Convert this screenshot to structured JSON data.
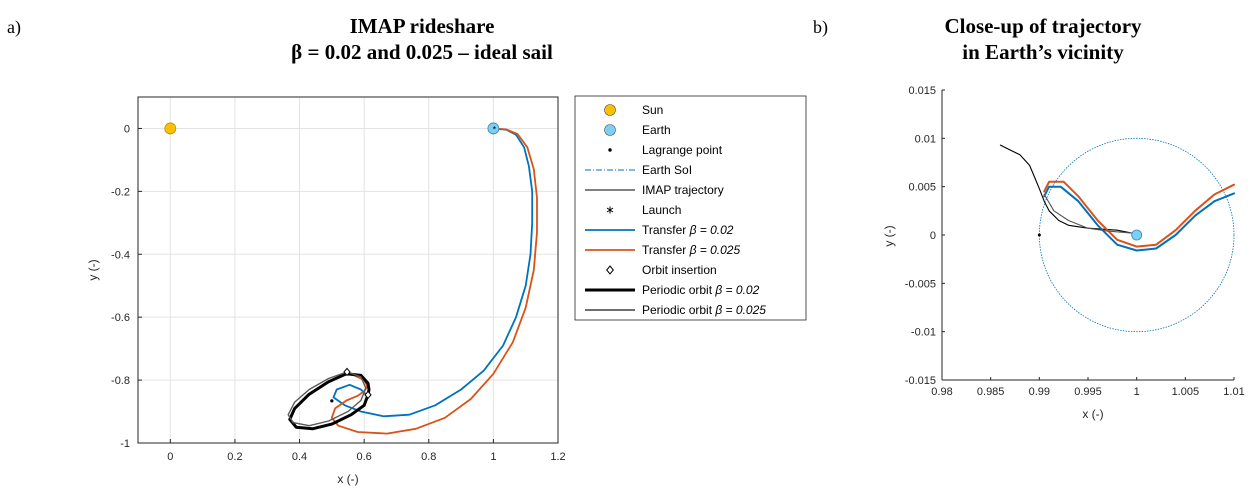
{
  "panels": {
    "a": {
      "label": "a)",
      "title_line1": "IMAP rideshare",
      "title_line2": "β = 0.02 and 0.025 – ideal sail"
    },
    "b": {
      "label": "b)",
      "title_line1": "Close-up of trajectory",
      "title_line2": "in Earth’s vicinity"
    }
  },
  "chart_data": [
    {
      "type": "line",
      "title": "IMAP rideshare β = 0.02 and 0.025 – ideal sail",
      "xlabel": "x (-)",
      "ylabel": "y (-)",
      "xlim": [
        -0.1,
        1.2
      ],
      "ylim": [
        -1.0,
        0.1
      ],
      "xticks": [
        "0",
        "0.2",
        "0.4",
        "0.6",
        "0.8",
        "1",
        "1.2"
      ],
      "yticks": [
        "0",
        "-0.2",
        "-0.4",
        "-0.6",
        "-0.8",
        "-1"
      ],
      "xtick_values": [
        0,
        0.2,
        0.4,
        0.6,
        0.8,
        1.0,
        1.2
      ],
      "ytick_values": [
        0,
        -0.2,
        -0.4,
        -0.6,
        -0.8,
        -1.0
      ],
      "grid": true,
      "legend_position": "outside-right",
      "legend": [
        {
          "label": "Sun",
          "kind": "marker",
          "marker": "circle",
          "color": "#FDBF00"
        },
        {
          "label": "Earth",
          "kind": "marker",
          "marker": "circle",
          "color": "#7ECFF4"
        },
        {
          "label": "Lagrange point",
          "kind": "marker",
          "marker": "dot",
          "color": "#000000"
        },
        {
          "label": "Earth SoI",
          "kind": "line",
          "style": "dashdot",
          "color": "#0072BD"
        },
        {
          "label": "IMAP trajectory",
          "kind": "line",
          "style": "solid",
          "color": "#000000"
        },
        {
          "label": "Launch",
          "kind": "marker",
          "marker": "asterisk",
          "color": "#000000"
        },
        {
          "label": "Transfer",
          "beta": "β = 0.02",
          "kind": "line",
          "style": "solid",
          "color": "#0072BD"
        },
        {
          "label": "Transfer",
          "beta": "β = 0.025",
          "kind": "line",
          "style": "solid",
          "color": "#D95319"
        },
        {
          "label": "Orbit insertion",
          "kind": "marker",
          "marker": "diamond",
          "color": "#000000"
        },
        {
          "label": "Periodic orbit",
          "beta": "β = 0.02",
          "kind": "line",
          "style": "thick",
          "color": "#000000"
        },
        {
          "label": "Periodic orbit",
          "beta": "β = 0.025",
          "kind": "line",
          "style": "solid",
          "color": "#5a5a5a"
        }
      ],
      "markers": {
        "sun": {
          "x": 0,
          "y": 0
        },
        "earth": {
          "x": 1.0,
          "y": 0
        },
        "lagrange_point": {
          "x": 0.5,
          "y": -0.866
        },
        "orbit_insertion_1": {
          "x": 0.547,
          "y": -0.774
        },
        "orbit_insertion_2": {
          "x": 0.612,
          "y": -0.847
        }
      },
      "series": [
        {
          "name": "Transfer β = 0.02",
          "color": "#0072BD",
          "points": [
            [
              1.0,
              0
            ],
            [
              1.04,
              -0.004
            ],
            [
              1.07,
              -0.02
            ],
            [
              1.095,
              -0.06
            ],
            [
              1.11,
              -0.12
            ],
            [
              1.12,
              -0.2
            ],
            [
              1.12,
              -0.3
            ],
            [
              1.115,
              -0.4
            ],
            [
              1.1,
              -0.5
            ],
            [
              1.07,
              -0.6
            ],
            [
              1.03,
              -0.69
            ],
            [
              0.97,
              -0.77
            ],
            [
              0.9,
              -0.83
            ],
            [
              0.82,
              -0.88
            ],
            [
              0.74,
              -0.91
            ],
            [
              0.66,
              -0.915
            ],
            [
              0.59,
              -0.9
            ],
            [
              0.54,
              -0.88
            ],
            [
              0.505,
              -0.855
            ],
            [
              0.515,
              -0.83
            ],
            [
              0.555,
              -0.815
            ],
            [
              0.59,
              -0.83
            ],
            [
              0.61,
              -0.85
            ]
          ]
        },
        {
          "name": "Transfer β = 0.025",
          "color": "#D95319",
          "points": [
            [
              1.0,
              0
            ],
            [
              1.04,
              -0.003
            ],
            [
              1.075,
              -0.018
            ],
            [
              1.105,
              -0.06
            ],
            [
              1.125,
              -0.13
            ],
            [
              1.135,
              -0.22
            ],
            [
              1.135,
              -0.33
            ],
            [
              1.125,
              -0.45
            ],
            [
              1.1,
              -0.57
            ],
            [
              1.06,
              -0.68
            ],
            [
              1.0,
              -0.78
            ],
            [
              0.93,
              -0.86
            ],
            [
              0.85,
              -0.92
            ],
            [
              0.76,
              -0.955
            ],
            [
              0.67,
              -0.97
            ],
            [
              0.58,
              -0.965
            ],
            [
              0.52,
              -0.945
            ],
            [
              0.5,
              -0.92
            ],
            [
              0.51,
              -0.89
            ],
            [
              0.545,
              -0.865
            ],
            [
              0.58,
              -0.85
            ],
            [
              0.6,
              -0.835
            ],
            [
              0.61,
              -0.82
            ],
            [
              0.6,
              -0.8
            ],
            [
              0.57,
              -0.785
            ],
            [
              0.55,
              -0.775
            ]
          ]
        },
        {
          "name": "Periodic orbit β = 0.02",
          "color": "#000000",
          "points": [
            [
              0.612,
              -0.847
            ],
            [
              0.6,
              -0.88
            ],
            [
              0.56,
              -0.91
            ],
            [
              0.5,
              -0.94
            ],
            [
              0.44,
              -0.955
            ],
            [
              0.39,
              -0.95
            ],
            [
              0.37,
              -0.925
            ],
            [
              0.385,
              -0.89
            ],
            [
              0.43,
              -0.845
            ],
            [
              0.49,
              -0.805
            ],
            [
              0.545,
              -0.78
            ],
            [
              0.59,
              -0.785
            ],
            [
              0.612,
              -0.81
            ],
            [
              0.615,
              -0.83
            ],
            [
              0.612,
              -0.847
            ]
          ]
        },
        {
          "name": "Periodic orbit β = 0.025",
          "color": "#5a5a5a",
          "points": [
            [
              0.547,
              -0.774
            ],
            [
              0.59,
              -0.79
            ],
            [
              0.605,
              -0.825
            ],
            [
              0.59,
              -0.865
            ],
            [
              0.55,
              -0.9
            ],
            [
              0.49,
              -0.93
            ],
            [
              0.43,
              -0.945
            ],
            [
              0.38,
              -0.935
            ],
            [
              0.365,
              -0.91
            ],
            [
              0.385,
              -0.87
            ],
            [
              0.43,
              -0.83
            ],
            [
              0.49,
              -0.795
            ],
            [
              0.547,
              -0.774
            ]
          ]
        }
      ]
    },
    {
      "type": "line",
      "title": "Close-up of trajectory in Earth’s vicinity",
      "xlabel": "x (-)",
      "ylabel": "y (-)",
      "xlim": [
        0.98,
        1.01
      ],
      "ylim": [
        -0.015,
        0.015
      ],
      "xticks": [
        "0.98",
        "0.985",
        "0.99",
        "0.995",
        "1",
        "1.005",
        "1.01"
      ],
      "yticks": [
        "0.015",
        "0.01",
        "0.005",
        "0",
        "-0.005",
        "-0.01",
        "-0.015"
      ],
      "xtick_values": [
        0.98,
        0.985,
        0.99,
        0.995,
        1.0,
        1.005,
        1.01
      ],
      "ytick_values": [
        0.015,
        0.01,
        0.005,
        0,
        -0.005,
        -0.01,
        -0.015
      ],
      "grid": false,
      "markers": {
        "earth": {
          "x": 1.0,
          "y": 0
        },
        "lagrange_point": {
          "x": 0.99,
          "y": 0
        }
      },
      "earth_soi": {
        "center": [
          1.0,
          0
        ],
        "radius": 0.01,
        "color": "#0072BD"
      },
      "series": [
        {
          "name": "IMAP trajectory",
          "color": "#000000",
          "points": [
            [
              0.986,
              0.0093
            ],
            [
              0.988,
              0.0083
            ],
            [
              0.989,
              0.0072
            ],
            [
              0.9895,
              0.006
            ],
            [
              0.99,
              0.0048
            ],
            [
              0.9905,
              0.0035
            ],
            [
              0.991,
              0.0025
            ],
            [
              0.992,
              0.0015
            ],
            [
              0.993,
              0.001
            ],
            [
              0.995,
              0.0007
            ],
            [
              0.998,
              0.0005
            ],
            [
              0.9995,
              0.0002
            ],
            [
              1.0,
              0
            ]
          ]
        },
        {
          "name": "Transfer β = 0.025",
          "color": "#D95319",
          "points": [
            [
              0.9905,
              0.0045
            ],
            [
              0.991,
              0.0055
            ],
            [
              0.9925,
              0.0055
            ],
            [
              0.994,
              0.004
            ],
            [
              0.996,
              0.0015
            ],
            [
              0.998,
              -0.0005
            ],
            [
              1.0,
              -0.0012
            ],
            [
              1.002,
              -0.001
            ],
            [
              1.004,
              0.0005
            ],
            [
              1.006,
              0.0025
            ],
            [
              1.008,
              0.0042
            ],
            [
              1.01,
              0.0052
            ]
          ]
        },
        {
          "name": "Transfer β = 0.02",
          "color": "#0072BD",
          "points": [
            [
              0.9905,
              0.004
            ],
            [
              0.991,
              0.005
            ],
            [
              0.9922,
              0.005
            ],
            [
              0.994,
              0.0035
            ],
            [
              0.996,
              0.001
            ],
            [
              0.998,
              -0.001
            ],
            [
              1.0,
              -0.0016
            ],
            [
              1.002,
              -0.0014
            ],
            [
              1.004,
              0.0
            ],
            [
              1.006,
              0.002
            ],
            [
              1.008,
              0.0035
            ],
            [
              1.01,
              0.0043
            ]
          ]
        },
        {
          "name": "IMAP trajectory branch",
          "color": "#555555",
          "points": [
            [
              0.9905,
              0.0042
            ],
            [
              0.9915,
              0.0025
            ],
            [
              0.993,
              0.0015
            ],
            [
              0.995,
              0.0007
            ],
            [
              0.997,
              0.0004
            ],
            [
              0.9995,
              0.0002
            ]
          ]
        }
      ]
    }
  ]
}
